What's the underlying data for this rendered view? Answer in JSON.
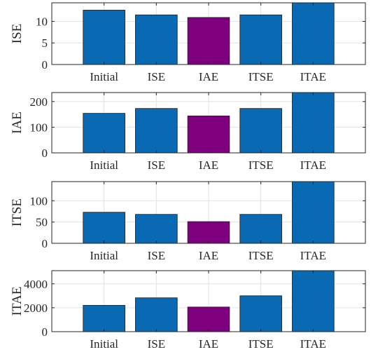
{
  "colors": {
    "default_bar": "#0a69b3",
    "highlight_bar": "#7f007f"
  },
  "chart_data": [
    {
      "type": "bar",
      "ylabel": "ISE",
      "categories": [
        "Initial",
        "ISE",
        "IAE",
        "ITSE",
        "ITAE"
      ],
      "values": [
        12.6,
        11.5,
        10.9,
        11.5,
        14.3
      ],
      "highlight_index": 2,
      "xlim": [
        0,
        6
      ],
      "ylim": [
        0,
        14.3
      ],
      "yticks": [
        0,
        5,
        10
      ],
      "grid": true
    },
    {
      "type": "bar",
      "ylabel": "IAE",
      "categories": [
        "Initial",
        "ISE",
        "IAE",
        "ITSE",
        "ITAE"
      ],
      "values": [
        154,
        173,
        144,
        173,
        235
      ],
      "highlight_index": 2,
      "xlim": [
        0,
        6
      ],
      "ylim": [
        0,
        235
      ],
      "yticks": [
        0,
        100,
        200
      ],
      "grid": true
    },
    {
      "type": "bar",
      "ylabel": "ITSE",
      "categories": [
        "Initial",
        "ISE",
        "IAE",
        "ITSE",
        "ITAE"
      ],
      "values": [
        73,
        68,
        51,
        68,
        145
      ],
      "highlight_index": 2,
      "xlim": [
        0,
        6
      ],
      "ylim": [
        0,
        145
      ],
      "yticks": [
        0,
        50,
        100
      ],
      "grid": true
    },
    {
      "type": "bar",
      "ylabel": "ITAE",
      "categories": [
        "Initial",
        "ISE",
        "IAE",
        "ITSE",
        "ITAE"
      ],
      "values": [
        2200,
        2830,
        2060,
        3000,
        5100
      ],
      "highlight_index": 2,
      "xlim": [
        0,
        6
      ],
      "ylim": [
        0,
        5100
      ],
      "yticks": [
        0,
        2000,
        4000
      ],
      "grid": true
    }
  ]
}
